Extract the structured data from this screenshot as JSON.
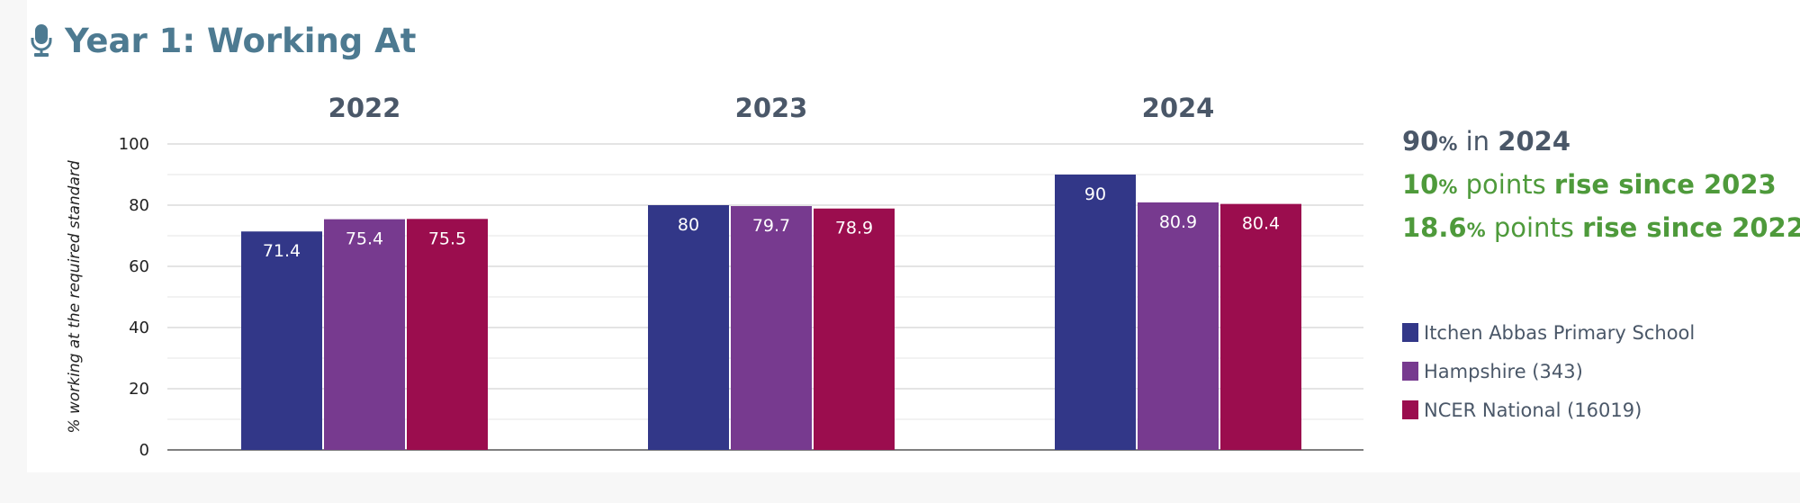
{
  "title": "Year 1: Working At",
  "icon": "microphone-icon",
  "colors": {
    "title": "#4d7a91",
    "school": "#323788",
    "hampshire": "#773a8f",
    "national": "#9b0d4e",
    "highlight": "#4e9a3b",
    "text": "#4a5768"
  },
  "stats": {
    "line1": {
      "num": "90",
      "pct": "%",
      "mid": " in ",
      "bold": "2024"
    },
    "line2": {
      "num": "10",
      "pct": "%",
      "mid": " points ",
      "bold": "rise since 2023"
    },
    "line3": {
      "num": "18.6",
      "pct": "%",
      "mid": " points ",
      "bold": "rise since 2022"
    }
  },
  "chart_data": {
    "type": "bar",
    "categories": [
      "2022",
      "2023",
      "2024"
    ],
    "series": [
      {
        "name": "Itchen Abbas Primary School",
        "values": [
          71.4,
          80,
          90
        ],
        "color": "#323788"
      },
      {
        "name": "Hampshire (343)",
        "values": [
          75.4,
          79.7,
          80.9
        ],
        "color": "#773a8f"
      },
      {
        "name": "NCER National (16019)",
        "values": [
          75.5,
          78.9,
          80.4
        ],
        "color": "#9b0d4e"
      }
    ],
    "ylabel": "% working at the required standard",
    "ylim": [
      0,
      100
    ],
    "yticks": [
      0,
      20,
      40,
      60,
      80,
      100
    ],
    "grid": true,
    "legend": "right"
  }
}
